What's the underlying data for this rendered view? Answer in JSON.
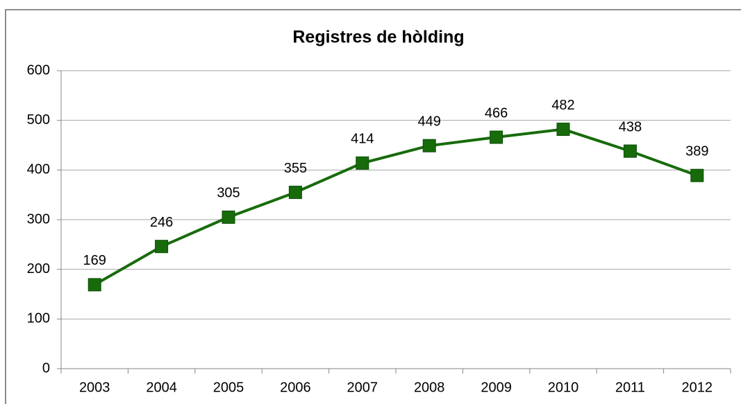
{
  "chart_data": {
    "type": "line",
    "title": "Registres de hòlding",
    "categories": [
      "2003",
      "2004",
      "2005",
      "2006",
      "2007",
      "2008",
      "2009",
      "2010",
      "2011",
      "2012"
    ],
    "values": [
      169,
      246,
      305,
      355,
      414,
      449,
      466,
      482,
      438,
      389
    ],
    "color": "#176b0b",
    "ylim": [
      0,
      600
    ],
    "yticks": [
      0,
      100,
      200,
      300,
      400,
      500,
      600
    ],
    "grid": true
  }
}
